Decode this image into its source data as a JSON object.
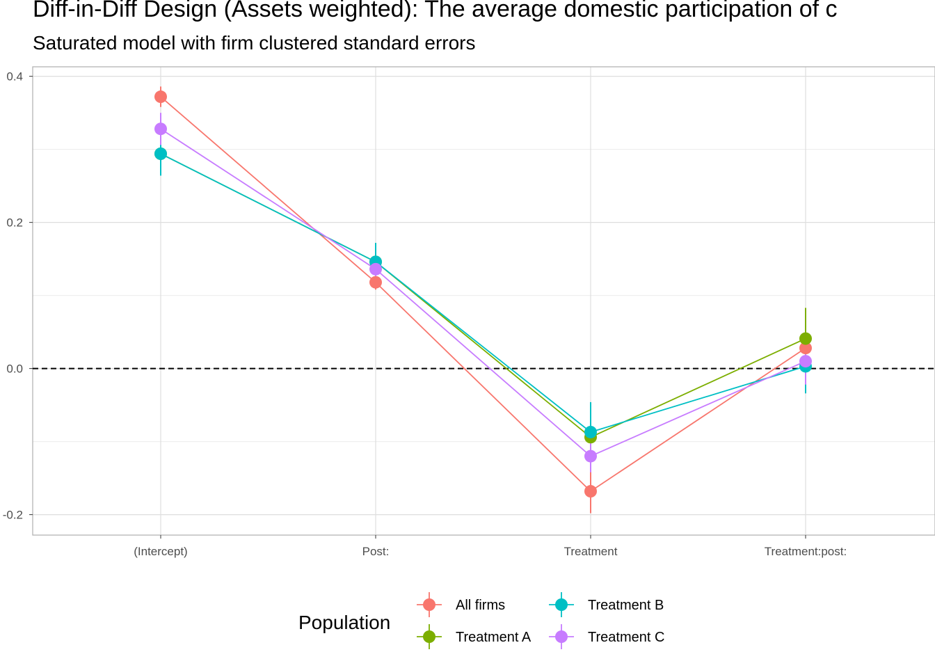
{
  "chart_data": {
    "type": "scatter",
    "title": "Diff-in-Diff Design (Assets weighted): The average domestic participation of c",
    "subtitle": "Saturated model with firm clustered standard errors",
    "xlabel": "",
    "ylabel": "",
    "categories": [
      "(Intercept)",
      "Post:",
      "Treatment",
      "Treatment:post:"
    ],
    "ylim": [
      -0.228,
      0.413
    ],
    "yticks": [
      -0.2,
      0.0,
      0.2,
      0.4
    ],
    "ytick_labels": [
      "-0.2",
      "0.0",
      "0.2",
      "0.4"
    ],
    "reference_line": {
      "y": 0.0,
      "style": "dashed",
      "color": "#000000"
    },
    "grid": true,
    "legend": {
      "title": "Population",
      "position": "bottom"
    },
    "series": [
      {
        "name": "All firms",
        "color": "#F8766D",
        "values": [
          0.372,
          0.118,
          -0.168,
          0.028
        ],
        "lower": [
          0.358,
          0.108,
          -0.198,
          0.018
        ],
        "upper": [
          0.386,
          0.128,
          -0.138,
          0.038
        ]
      },
      {
        "name": "Treatment A",
        "color": "#7CAE00",
        "values": [
          0.294,
          0.146,
          -0.094,
          0.041
        ],
        "lower": [
          0.281,
          0.133,
          -0.104,
          -0.001
        ],
        "upper": [
          0.307,
          0.159,
          -0.084,
          0.083
        ]
      },
      {
        "name": "Treatment B",
        "color": "#00BFC4",
        "values": [
          0.294,
          0.146,
          -0.087,
          0.003
        ],
        "lower": [
          0.264,
          0.121,
          -0.126,
          -0.034
        ],
        "upper": [
          0.324,
          0.172,
          -0.046,
          0.04
        ]
      },
      {
        "name": "Treatment C",
        "color": "#C77CFF",
        "values": [
          0.328,
          0.136,
          -0.12,
          0.01
        ],
        "lower": [
          0.306,
          0.124,
          -0.142,
          -0.022
        ],
        "upper": [
          0.35,
          0.148,
          -0.098,
          0.028
        ]
      }
    ]
  }
}
